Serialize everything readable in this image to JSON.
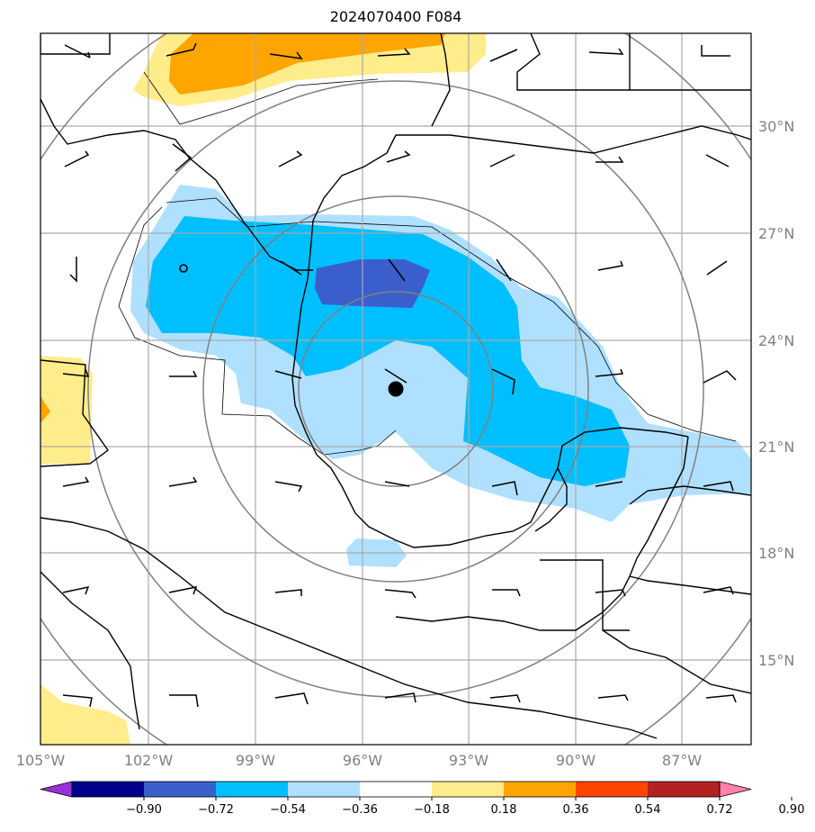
{
  "title": "2024070400 F084",
  "map": {
    "lat_labels": [
      "30°N",
      "27°N",
      "24°N",
      "21°N",
      "18°N",
      "15°N"
    ],
    "lon_labels": [
      "105°W",
      "102°W",
      "99°W",
      "96°W",
      "93°W",
      "90°W",
      "87°W"
    ],
    "storm_center": {
      "lon": "95°W",
      "lat": "22.6°N"
    },
    "range_ring_color": "#808080",
    "coast_color": "#000000"
  },
  "colorbar": {
    "labels": [
      "−0.90",
      "−0.72",
      "−0.54",
      "−0.36",
      "−0.18",
      "0.18",
      "0.36",
      "0.54",
      "0.72",
      "0.90"
    ],
    "colors": [
      "#9b30d9",
      "#00008b",
      "#3a5fcd",
      "#00bfff",
      "#b0e0ff",
      "#ffffff",
      "#ffec8b",
      "#ffa500",
      "#ff4500",
      "#b22222",
      "#ff82ab"
    ]
  }
}
